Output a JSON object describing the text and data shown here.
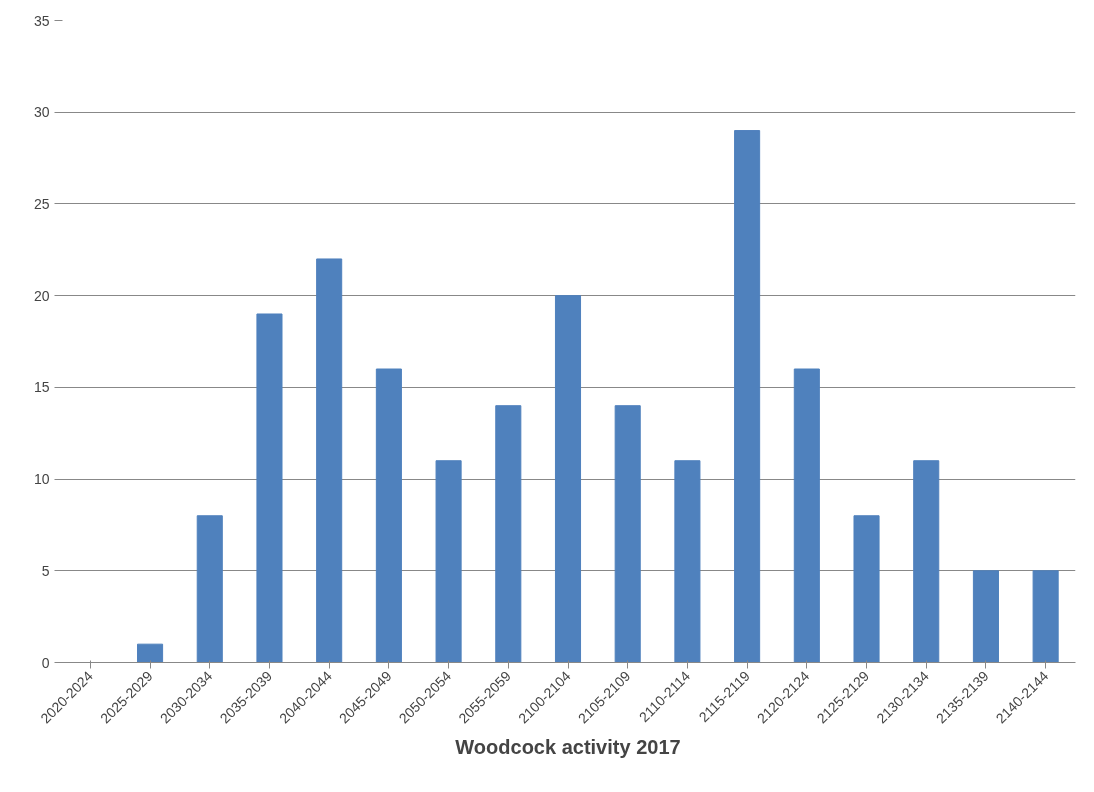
{
  "chart_data": {
    "type": "bar",
    "xlabel": "Woodcock activity 2017",
    "categories": [
      "2020-2024",
      "2025-2029",
      "2030-2034",
      "2035-2039",
      "2040-2044",
      "2045-2049",
      "2050-2054",
      "2055-2059",
      "2100-2104",
      "2105-2109",
      "2110-2114",
      "2115-2119",
      "2120-2124",
      "2125-2129",
      "2130-2134",
      "2135-2139",
      "2140-2144"
    ],
    "values": [
      0,
      1,
      8,
      19,
      22,
      16,
      11,
      14,
      20,
      14,
      11,
      29,
      16,
      8,
      11,
      5,
      5
    ],
    "color": "#4f81bd",
    "ylim": [
      0,
      35
    ],
    "yticks": [
      0,
      5,
      10,
      15,
      20,
      25,
      30,
      35
    ],
    "grid": "y"
  }
}
